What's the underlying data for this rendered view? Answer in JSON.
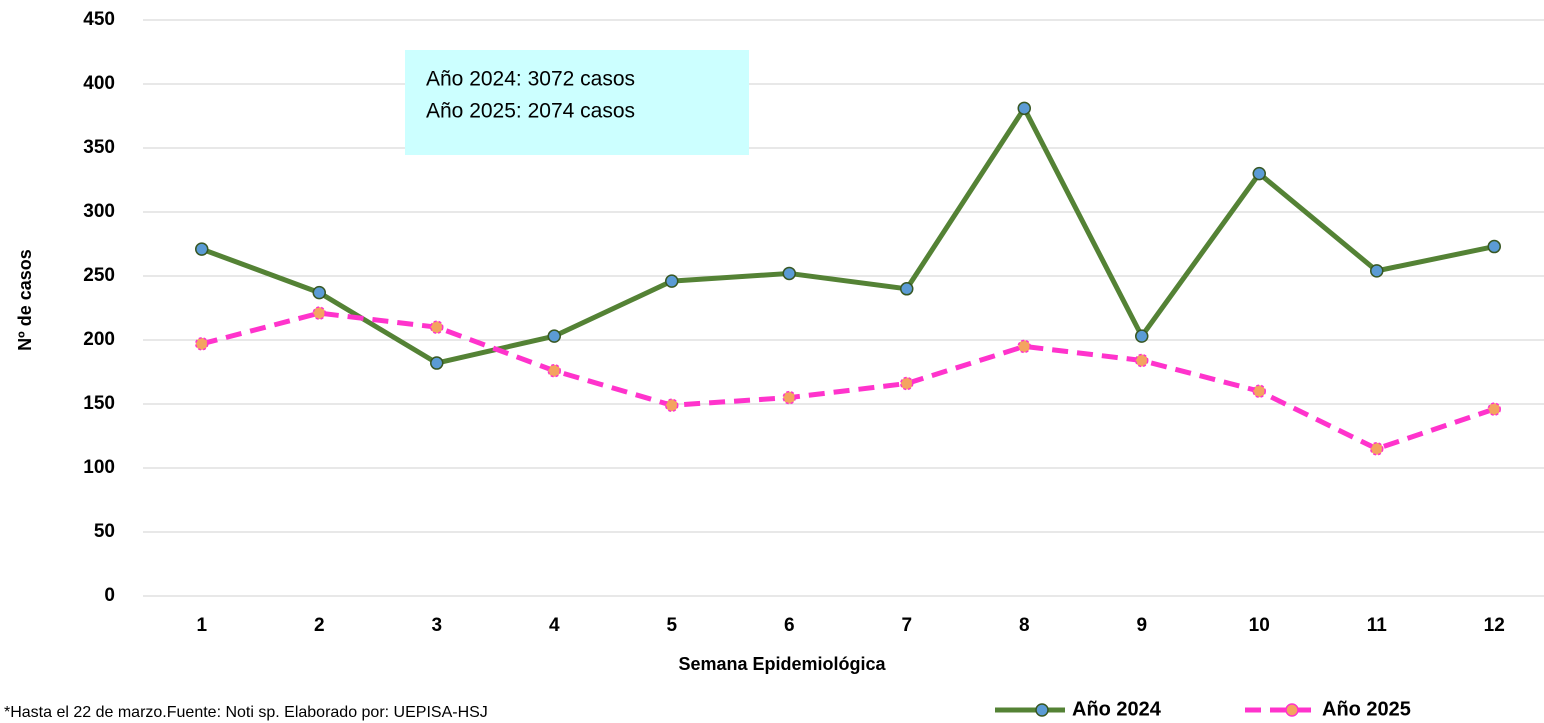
{
  "chart_data": {
    "type": "line",
    "x_label": "Semana Epidemiológica",
    "y_label": "Nº de casos",
    "annotations": [
      "Año 2024: 3072 casos",
      "Año 2025: 2074 casos"
    ],
    "footnote": "*Hasta el 22 de marzo.Fuente: Noti  sp. Elaborado por: UEPISA-HSJ",
    "categories": [
      "1",
      "2",
      "3",
      "4",
      "5",
      "6",
      "7",
      "8",
      "9",
      "10",
      "11",
      "12"
    ],
    "series": [
      {
        "name": "Año 2024",
        "color": "#548235",
        "marker_color": "#5b9bd5",
        "dashed": false,
        "values": [
          271,
          237,
          182,
          203,
          246,
          252,
          240,
          381,
          203,
          330,
          254,
          273
        ]
      },
      {
        "name": "Año 2025",
        "color": "#ff33cc",
        "marker_color": "#f4a460",
        "dashed": true,
        "values": [
          197,
          221,
          210,
          176,
          149,
          155,
          166,
          195,
          184,
          160,
          115,
          146
        ]
      }
    ],
    "ylim": [
      0,
      450
    ],
    "yticks": [
      0,
      50,
      100,
      150,
      200,
      250,
      300,
      350,
      400,
      450
    ],
    "grid": true,
    "legend": "bottom-right"
  }
}
